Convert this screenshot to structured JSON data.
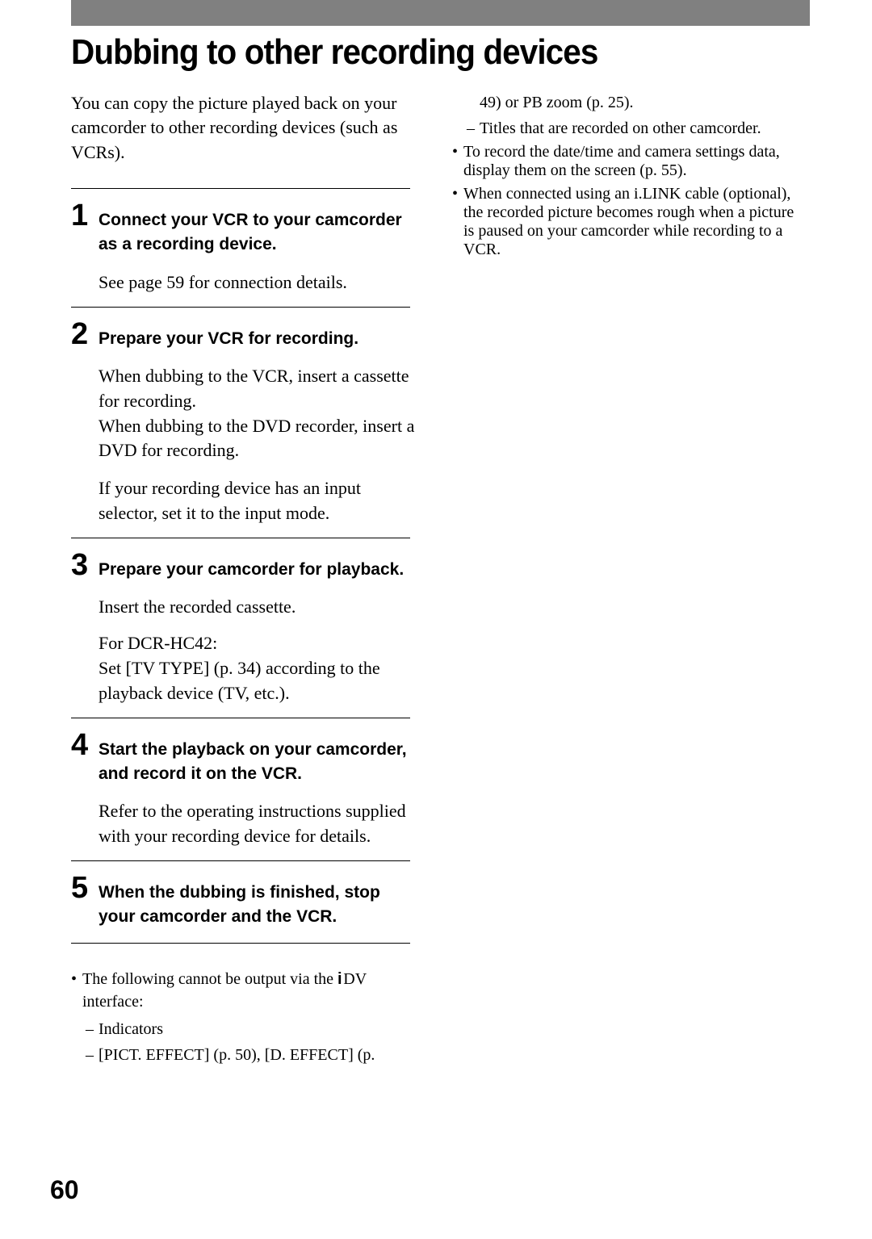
{
  "title": "Dubbing to other recording devices",
  "intro": "You can copy the picture played back on your camcorder to other recording devices (such as VCRs).",
  "steps": [
    {
      "num": "1",
      "heading": "Connect your VCR to your camcorder as a recording device.",
      "body": [
        "See page 59 for connection details."
      ]
    },
    {
      "num": "2",
      "heading": "Prepare your VCR for recording.",
      "body": [
        "When dubbing to the VCR, insert a cassette for recording.\nWhen dubbing to the DVD recorder, insert a DVD for recording.",
        "If your recording device has an input selector, set it to the input mode."
      ]
    },
    {
      "num": "3",
      "heading": "Prepare your camcorder for playback.",
      "body": [
        "Insert the recorded cassette.",
        "For DCR-HC42:\nSet [TV TYPE] (p. 34) according to the playback device (TV, etc.)."
      ]
    },
    {
      "num": "4",
      "heading": "Start the playback on your camcorder, and record it on the VCR.",
      "body": [
        "Refer to the operating instructions supplied with your recording device for details."
      ]
    },
    {
      "num": "5",
      "heading": "When the dubbing is finished, stop your camcorder and the VCR.",
      "body": []
    }
  ],
  "leftNotes": {
    "item1_pre": "The following cannot be output via the ",
    "item1_dv": "DV",
    "item1_post": " interface:",
    "sub1": "Indicators",
    "sub2": "[PICT. EFFECT] (p. 50), [D. EFFECT] (p."
  },
  "rightNotes": {
    "cont": "49) or PB zoom (p. 25).",
    "sub3": "Titles that are recorded on other camcorder.",
    "item2": "To record the date/time and camera settings data, display them on the screen (p. 55).",
    "item3": "When connected using an i.LINK cable (optional), the recorded picture becomes rough when a picture is paused on your camcorder while recording to a VCR."
  },
  "pageNumber": "60",
  "colors": {
    "headerBar": "#808080",
    "text": "#000000",
    "background": "#ffffff"
  }
}
